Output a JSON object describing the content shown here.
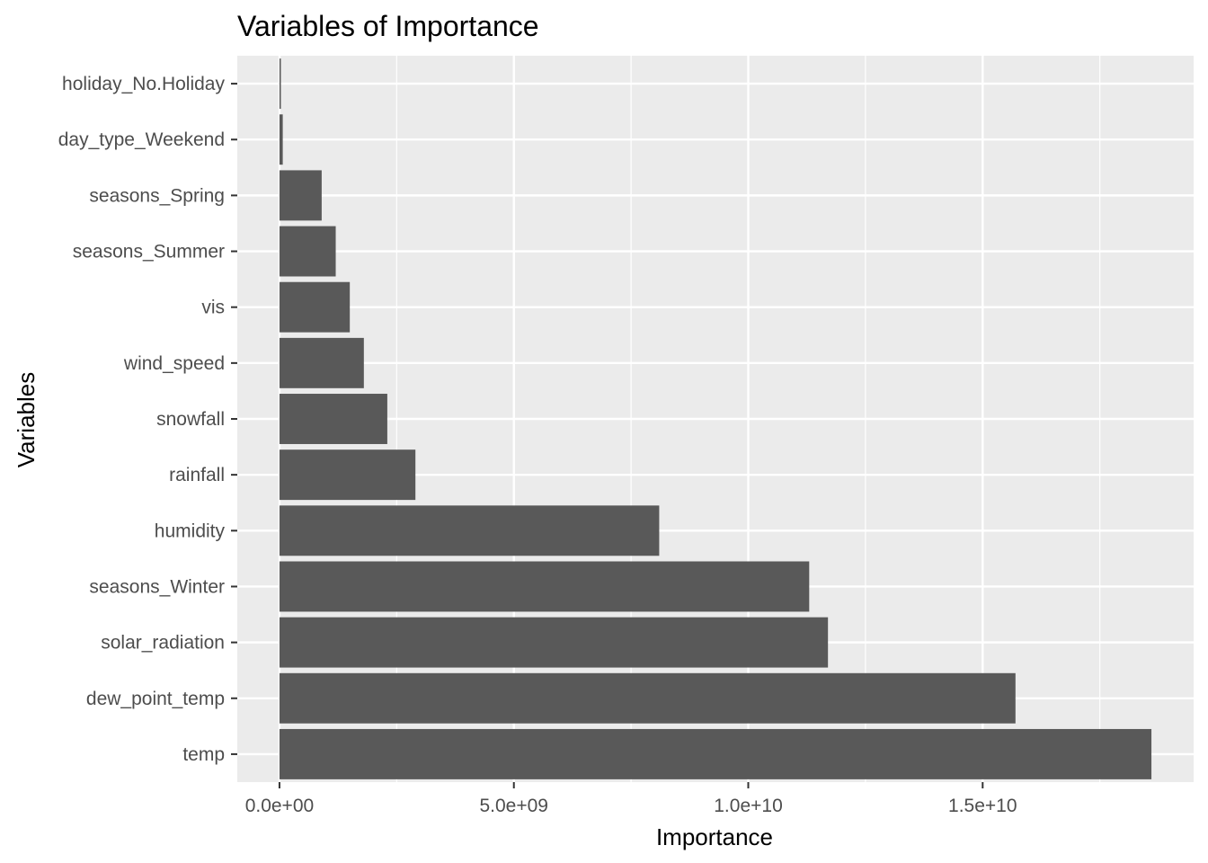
{
  "chart_data": {
    "type": "bar",
    "orientation": "horizontal",
    "title": "Variables of Importance",
    "xlabel": "Importance",
    "ylabel": "Variables",
    "categories": [
      "temp",
      "dew_point_temp",
      "solar_radiation",
      "seasons_Winter",
      "humidity",
      "rainfall",
      "snowfall",
      "wind_speed",
      "vis",
      "seasons_Summer",
      "seasons_Spring",
      "day_type_Weekend",
      "holiday_No.Holiday"
    ],
    "values": [
      18600000000,
      15700000000,
      11700000000,
      11300000000,
      8100000000,
      2900000000,
      2300000000,
      1800000000,
      1500000000,
      1200000000,
      900000000,
      70000000,
      30000000
    ],
    "xlim": [
      -900000000,
      19500000000
    ],
    "xticks": [
      0,
      5000000000,
      10000000000,
      15000000000
    ],
    "xtick_labels": [
      "0.0e+00",
      "5.0e+09",
      "1.0e+10",
      "1.5e+10"
    ],
    "grid": true,
    "colors": {
      "bar": "#595959",
      "panel": "#ebebeb",
      "grid": "#ffffff"
    }
  }
}
